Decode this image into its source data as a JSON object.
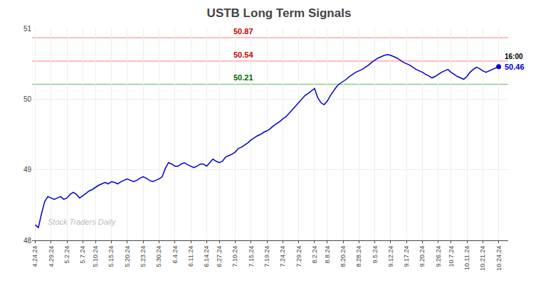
{
  "chart_data": {
    "type": "line",
    "title": "USTB Long Term Signals",
    "watermark": "Stock Traders Daily",
    "categories": [
      "4.24.24",
      null,
      null,
      null,
      null,
      "4.29.24",
      null,
      null,
      null,
      null,
      "5.2.24",
      null,
      null,
      null,
      null,
      "5.7.24",
      null,
      null,
      null,
      "5.10.24",
      null,
      null,
      null,
      null,
      "5.15.24",
      null,
      null,
      null,
      null,
      "5.20.24",
      null,
      null,
      null,
      null,
      "5.23.24",
      null,
      null,
      null,
      null,
      "5.30.24",
      null,
      null,
      null,
      null,
      "6.4.24",
      null,
      null,
      null,
      null,
      "6.11.24",
      null,
      null,
      null,
      null,
      "6.14.24",
      null,
      null,
      null,
      "6.27.24",
      null,
      null,
      null,
      null,
      "7.10.24",
      null,
      null,
      null,
      null,
      "7.15.24",
      null,
      null,
      null,
      null,
      "7.19.24",
      null,
      null,
      null,
      null,
      "7.24.24",
      null,
      null,
      null,
      null,
      "7.29.24",
      null,
      null,
      null,
      null,
      "8.2.24",
      null,
      null,
      null,
      "8.8.24",
      null,
      null,
      null,
      null,
      "8.20.24",
      null,
      null,
      null,
      null,
      "8.28.24",
      null,
      null,
      null,
      null,
      "9.5.24",
      null,
      null,
      null,
      null,
      "9.12.24",
      null,
      null,
      null,
      null,
      "9.17.24",
      null,
      null,
      null,
      null,
      "9.20.24",
      null,
      null,
      null,
      null,
      "9.26.24",
      null,
      null,
      null,
      "10.7.24",
      null,
      null,
      null,
      null,
      "10.11.24",
      null,
      null,
      null,
      null,
      "10.21.24",
      null,
      null,
      null,
      null,
      "10.24.24"
    ],
    "series": [
      {
        "name": "USTB",
        "color": "#0000cc",
        "values": [
          48.22,
          48.18,
          48.38,
          48.55,
          48.62,
          48.6,
          48.58,
          48.6,
          48.62,
          48.58,
          48.6,
          48.65,
          48.68,
          48.65,
          48.6,
          48.63,
          48.67,
          48.7,
          48.72,
          48.75,
          48.78,
          48.8,
          48.82,
          48.8,
          48.83,
          48.82,
          48.8,
          48.83,
          48.85,
          48.87,
          48.85,
          48.83,
          48.85,
          48.88,
          48.9,
          48.88,
          48.85,
          48.83,
          48.85,
          48.87,
          48.9,
          49.02,
          49.1,
          49.08,
          49.05,
          49.05,
          49.08,
          49.1,
          49.07,
          49.05,
          49.03,
          49.05,
          49.08,
          49.08,
          49.05,
          49.1,
          49.15,
          49.12,
          49.1,
          49.12,
          49.18,
          49.2,
          49.22,
          49.25,
          49.3,
          49.32,
          49.35,
          49.38,
          49.42,
          49.45,
          49.48,
          49.5,
          49.53,
          49.55,
          49.58,
          49.62,
          49.65,
          49.68,
          49.72,
          49.75,
          49.8,
          49.85,
          49.9,
          49.95,
          50.0,
          50.05,
          50.08,
          50.12,
          50.15,
          50.02,
          49.95,
          49.92,
          49.97,
          50.05,
          50.12,
          50.18,
          50.22,
          50.25,
          50.28,
          50.32,
          50.35,
          50.38,
          50.4,
          50.42,
          50.45,
          50.48,
          50.52,
          50.55,
          50.58,
          50.6,
          50.62,
          50.63,
          50.62,
          50.6,
          50.58,
          50.55,
          50.52,
          50.5,
          50.48,
          50.45,
          50.42,
          50.4,
          50.38,
          50.35,
          50.33,
          50.3,
          50.32,
          50.35,
          50.38,
          50.4,
          50.42,
          50.38,
          50.35,
          50.32,
          50.3,
          50.28,
          50.32,
          50.38,
          50.42,
          50.45,
          50.43,
          50.4,
          50.38,
          50.4,
          50.42,
          50.44,
          50.46
        ]
      }
    ],
    "hlines": [
      {
        "value": 50.87,
        "label": "50.87",
        "color": "#ffaaaa",
        "label_color": "#cc0000"
      },
      {
        "value": 50.54,
        "label": "50.54",
        "color": "#ffaaaa",
        "label_color": "#cc0000"
      },
      {
        "value": 50.21,
        "label": "50.21",
        "color": "#88cc88",
        "label_color": "#006600"
      }
    ],
    "last_label": {
      "time": "16:00",
      "price": "50.46",
      "color": "#0000cc"
    },
    "ylim": [
      48,
      51
    ],
    "yticks": [
      48,
      49,
      50,
      51
    ],
    "grid": true
  }
}
